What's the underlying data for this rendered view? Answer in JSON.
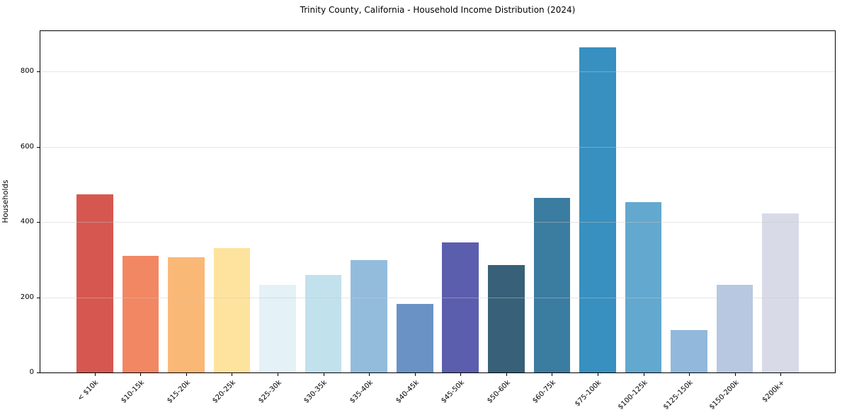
{
  "chart_data": {
    "type": "bar",
    "title": "Trinity County, California - Household Income Distribution (2024)",
    "xlabel": "",
    "ylabel": "Households",
    "categories": [
      "< $10k",
      "$10-15k",
      "$15-20k",
      "$20-25k",
      "$25-30k",
      "$30-35k",
      "$35-40k",
      "$40-45k",
      "$45-50k",
      "$50-60k",
      "$60-75k",
      "$75-100k",
      "$100-125k",
      "$125-150k",
      "$150-200k",
      "$200k+"
    ],
    "values": [
      474,
      309,
      306,
      331,
      233,
      260,
      298,
      182,
      346,
      286,
      463,
      864,
      453,
      112,
      233,
      422
    ],
    "bar_colors": [
      "#d65750",
      "#f28763",
      "#fab876",
      "#fde39e",
      "#e4f1f6",
      "#c1e1ed",
      "#93bcdc",
      "#6b92c5",
      "#5b5ead",
      "#386078",
      "#3b7ca1",
      "#3890c0",
      "#63a8cf",
      "#92b8db",
      "#b7c8e0",
      "#d8dae7"
    ],
    "yticks": [
      0,
      200,
      400,
      600,
      800
    ],
    "ylim": [
      0,
      907.2
    ],
    "xlim": [
      -1.19,
      16.19
    ],
    "bar_width_units": 0.8,
    "x_tick_rotation_deg": 45,
    "grid": "horizontal",
    "grid_color": "#e5e5e5",
    "axis_color": "#000000",
    "text_color": "#000000",
    "background": "#ffffff",
    "legend": "none"
  }
}
